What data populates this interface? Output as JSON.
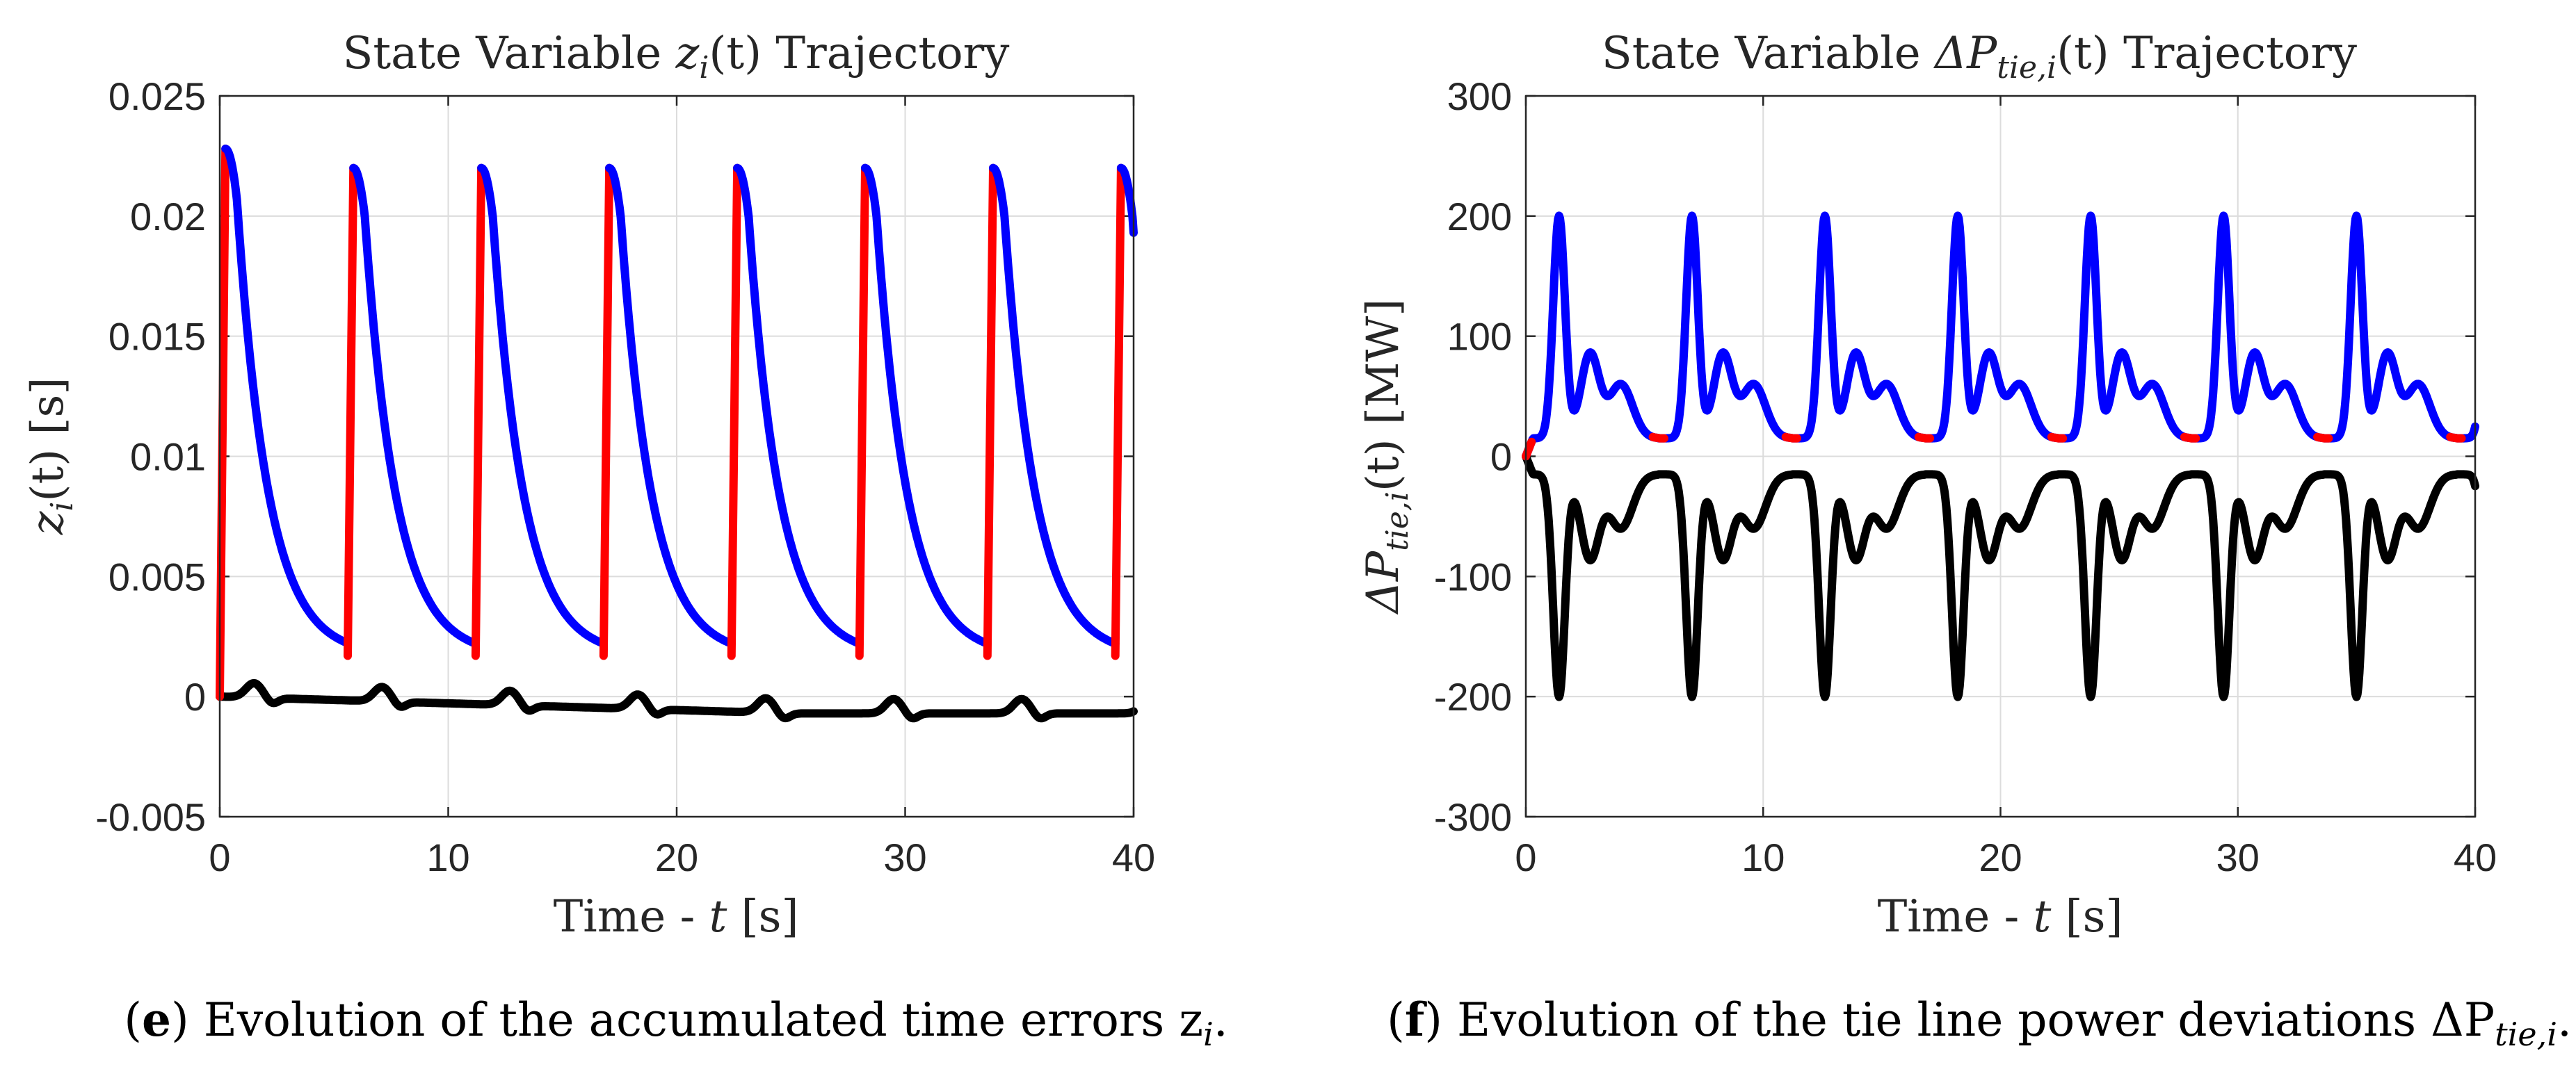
{
  "chart_data": [
    {
      "panel": "e",
      "type": "line",
      "title_prefix": "State Variable ",
      "title_var": "z",
      "title_sub": "i",
      "title_arg": "(t)",
      "title_suffix": " Trajectory",
      "xlabel_prefix": "Time - ",
      "xlabel_var": "t",
      "xlabel_unit": " [s]",
      "ylabel_var": "z",
      "ylabel_sub": "i",
      "ylabel_rest": "(t)  [s]",
      "xlim": [
        0,
        40
      ],
      "ylim": [
        -0.005,
        0.025
      ],
      "xticks": [
        0,
        10,
        20,
        30,
        40
      ],
      "xtick_labels": [
        "0",
        "10",
        "20",
        "30",
        "40"
      ],
      "yticks": [
        -0.005,
        0,
        0.005,
        0.01,
        0.015,
        0.02,
        0.025
      ],
      "ytick_labels": [
        "-0.005",
        "0",
        "0.005",
        "0.01",
        "0.015",
        "0.02",
        "0.025"
      ],
      "grid": true,
      "period": 5.6,
      "colors": {
        "rise": "#ff0000",
        "decay": "#0000ff",
        "aux": "#000000"
      },
      "series": [
        {
          "name": "rise",
          "color": "#ff0000",
          "description": "linear ramp phase at start of each cycle",
          "start": 0.0017,
          "end": 0.022,
          "duration": 0.25
        },
        {
          "name": "decay",
          "color": "#0000ff",
          "description": "exponential decay phase",
          "peak": 0.0228,
          "floor": 0.0017,
          "tau": 1.35
        },
        {
          "name": "aux",
          "color": "#000000",
          "description": "small oscillation near zero",
          "amplitude": 0.0006,
          "drift_end": -0.0007
        }
      ],
      "caption_label": "e",
      "caption_text": " Evolution of the accumulated time errors z",
      "caption_sub": "i",
      "caption_end": "."
    },
    {
      "panel": "f",
      "type": "line",
      "title_prefix": "State Variable ",
      "title_var": "ΔP",
      "title_sub": "tie,i",
      "title_arg": "(t)",
      "title_suffix": " Trajectory",
      "xlabel_prefix": "Time - ",
      "xlabel_var": "t",
      "xlabel_unit": " [s]",
      "ylabel_var": "ΔP",
      "ylabel_sub": "tie,i",
      "ylabel_rest": "(t)  [MW]",
      "xlim": [
        0,
        40
      ],
      "ylim": [
        -300,
        300
      ],
      "xticks": [
        0,
        10,
        20,
        30,
        40
      ],
      "xtick_labels": [
        "0",
        "10",
        "20",
        "30",
        "40"
      ],
      "yticks": [
        -300,
        -200,
        -100,
        0,
        100,
        200,
        300
      ],
      "ytick_labels": [
        "-300",
        "-200",
        "-100",
        "0",
        "100",
        "200",
        "300"
      ],
      "grid": true,
      "period": 5.6,
      "colors": {
        "rise": "#ff0000",
        "decay": "#0000ff",
        "aux": "#000000"
      },
      "series": [
        {
          "name": "positive",
          "color": "#0000ff",
          "description": "positive tie-line deviation, peak ~200 MW per cycle",
          "peak": 200,
          "floor": 15
        },
        {
          "name": "transition",
          "color": "#ff0000",
          "description": "short segments near the trough of each cycle",
          "floor": 15
        },
        {
          "name": "negative",
          "color": "#000000",
          "description": "mirror image of positive deviation, trough ~-200 MW",
          "peak": -200,
          "floor": -15
        }
      ],
      "caption_label": "f",
      "caption_text": " Evolution of the tie line power deviations ΔP",
      "caption_sub": "tie,i",
      "caption_end": "."
    }
  ]
}
